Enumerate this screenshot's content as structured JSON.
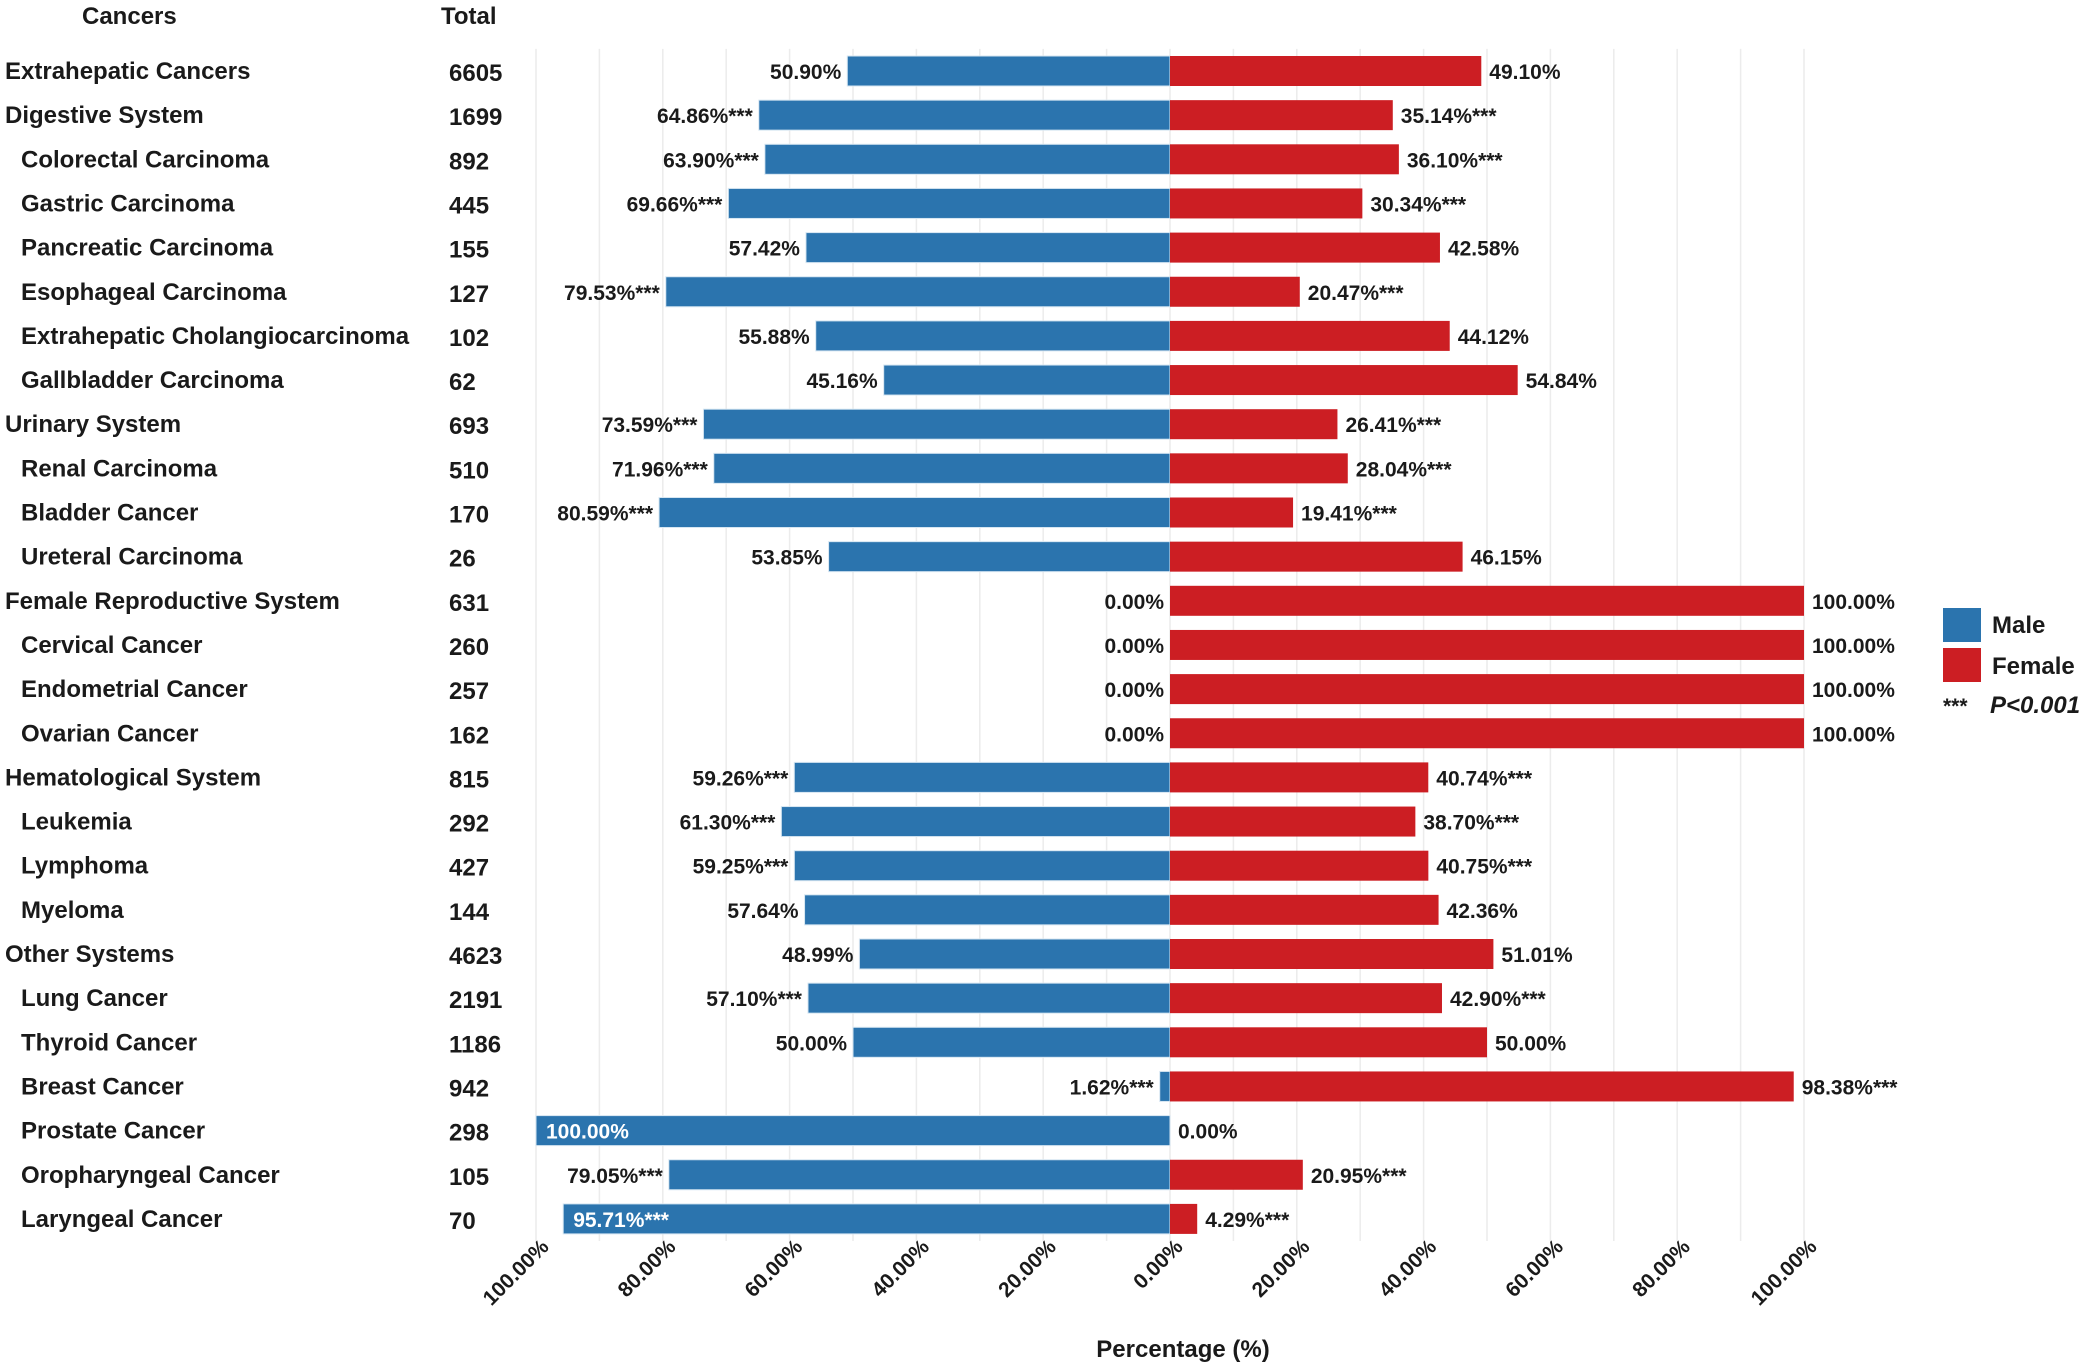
{
  "chart_data": {
    "type": "bar",
    "orientation": "horizontal-diverging",
    "column_headers": {
      "category": "Cancers",
      "total": "Total"
    },
    "xlabel": "Percentage (%)",
    "xlim": [
      -100,
      100
    ],
    "x_tick_labels": [
      "100.00%",
      "80.00%",
      "60.00%",
      "40.00%",
      "20.00%",
      "0.00%",
      "20.00%",
      "40.00%",
      "60.00%",
      "80.00%",
      "100.00%"
    ],
    "grid": "vertical, every 10%",
    "legend": {
      "position": "right",
      "entries": [
        {
          "name": "Male",
          "color": "#2b74ae"
        },
        {
          "name": "Female",
          "color": "#cc1e23"
        }
      ],
      "note_stars": "***",
      "note_text": "P<0.001"
    },
    "series": [
      {
        "name": "Male",
        "color": "#2b74ae"
      },
      {
        "name": "Female",
        "color": "#cc1e23"
      }
    ],
    "rows": [
      {
        "name": "Extrahepatic Cancers",
        "total": "6605",
        "level": 0,
        "male": 50.9,
        "female": 49.1,
        "male_label": "50.90%",
        "female_label": "49.10%"
      },
      {
        "name": "Digestive System",
        "total": "1699",
        "level": 0,
        "male": 64.86,
        "female": 35.14,
        "male_label": "64.86%***",
        "female_label": "35.14%***"
      },
      {
        "name": "Colorectal Carcinoma",
        "total": "892",
        "level": 1,
        "male": 63.9,
        "female": 36.1,
        "male_label": "63.90%***",
        "female_label": "36.10%***"
      },
      {
        "name": "Gastric Carcinoma",
        "total": "445",
        "level": 1,
        "male": 69.66,
        "female": 30.34,
        "male_label": "69.66%***",
        "female_label": "30.34%***"
      },
      {
        "name": "Pancreatic Carcinoma",
        "total": "155",
        "level": 1,
        "male": 57.42,
        "female": 42.58,
        "male_label": "57.42%",
        "female_label": "42.58%"
      },
      {
        "name": "Esophageal Carcinoma",
        "total": "127",
        "level": 1,
        "male": 79.53,
        "female": 20.47,
        "male_label": "79.53%***",
        "female_label": "20.47%***"
      },
      {
        "name": "Extrahepatic Cholangiocarcinoma",
        "total": "102",
        "level": 1,
        "male": 55.88,
        "female": 44.12,
        "male_label": "55.88%",
        "female_label": "44.12%"
      },
      {
        "name": "Gallbladder Carcinoma",
        "total": "62",
        "level": 1,
        "male": 45.16,
        "female": 54.84,
        "male_label": "45.16%",
        "female_label": "54.84%"
      },
      {
        "name": "Urinary System",
        "total": "693",
        "level": 0,
        "male": 73.59,
        "female": 26.41,
        "male_label": "73.59%***",
        "female_label": "26.41%***"
      },
      {
        "name": "Renal Carcinoma",
        "total": "510",
        "level": 1,
        "male": 71.96,
        "female": 28.04,
        "male_label": "71.96%***",
        "female_label": "28.04%***"
      },
      {
        "name": "Bladder Cancer",
        "total": "170",
        "level": 1,
        "male": 80.59,
        "female": 19.41,
        "male_label": "80.59%***",
        "female_label": "19.41%***"
      },
      {
        "name": "Ureteral Carcinoma",
        "total": "26",
        "level": 1,
        "male": 53.85,
        "female": 46.15,
        "male_label": "53.85%",
        "female_label": "46.15%"
      },
      {
        "name": "Female Reproductive System",
        "total": "631",
        "level": 0,
        "male": 0,
        "female": 100,
        "male_label": "0.00%",
        "female_label": "100.00%"
      },
      {
        "name": "Cervical Cancer",
        "total": "260",
        "level": 1,
        "male": 0,
        "female": 100,
        "male_label": "0.00%",
        "female_label": "100.00%"
      },
      {
        "name": "Endometrial Cancer",
        "total": "257",
        "level": 1,
        "male": 0,
        "female": 100,
        "male_label": "0.00%",
        "female_label": "100.00%"
      },
      {
        "name": "Ovarian Cancer",
        "total": "162",
        "level": 1,
        "male": 0,
        "female": 100,
        "male_label": "0.00%",
        "female_label": "100.00%"
      },
      {
        "name": "Hematological System",
        "total": "815",
        "level": 0,
        "male": 59.26,
        "female": 40.74,
        "male_label": "59.26%***",
        "female_label": "40.74%***"
      },
      {
        "name": "Leukemia",
        "total": "292",
        "level": 1,
        "male": 61.3,
        "female": 38.7,
        "male_label": "61.30%***",
        "female_label": "38.70%***"
      },
      {
        "name": "Lymphoma",
        "total": "427",
        "level": 1,
        "male": 59.25,
        "female": 40.75,
        "male_label": "59.25%***",
        "female_label": "40.75%***"
      },
      {
        "name": "Myeloma",
        "total": "144",
        "level": 1,
        "male": 57.64,
        "female": 42.36,
        "male_label": "57.64%",
        "female_label": "42.36%"
      },
      {
        "name": "Other Systems",
        "total": "4623",
        "level": 0,
        "male": 48.99,
        "female": 51.01,
        "male_label": "48.99%",
        "female_label": "51.01%"
      },
      {
        "name": "Lung Cancer",
        "total": "2191",
        "level": 1,
        "male": 57.1,
        "female": 42.9,
        "male_label": "57.10%***",
        "female_label": "42.90%***"
      },
      {
        "name": "Thyroid Cancer",
        "total": "1186",
        "level": 1,
        "male": 50.0,
        "female": 50.0,
        "male_label": "50.00%",
        "female_label": "50.00%"
      },
      {
        "name": "Breast Cancer",
        "total": "942",
        "level": 1,
        "male": 1.62,
        "female": 98.38,
        "male_label": "1.62%***",
        "female_label": "98.38%***"
      },
      {
        "name": "Prostate Cancer",
        "total": "298",
        "level": 1,
        "male": 100,
        "female": 0,
        "male_label": "100.00%",
        "female_label": "0.00%"
      },
      {
        "name": "Oropharyngeal Cancer",
        "total": "105",
        "level": 1,
        "male": 79.05,
        "female": 20.95,
        "male_label": "79.05%***",
        "female_label": "20.95%***"
      },
      {
        "name": "Laryngeal Cancer",
        "total": "70",
        "level": 1,
        "male": 95.71,
        "female": 4.29,
        "male_label": "95.71%***",
        "female_label": "4.29%***"
      }
    ]
  }
}
